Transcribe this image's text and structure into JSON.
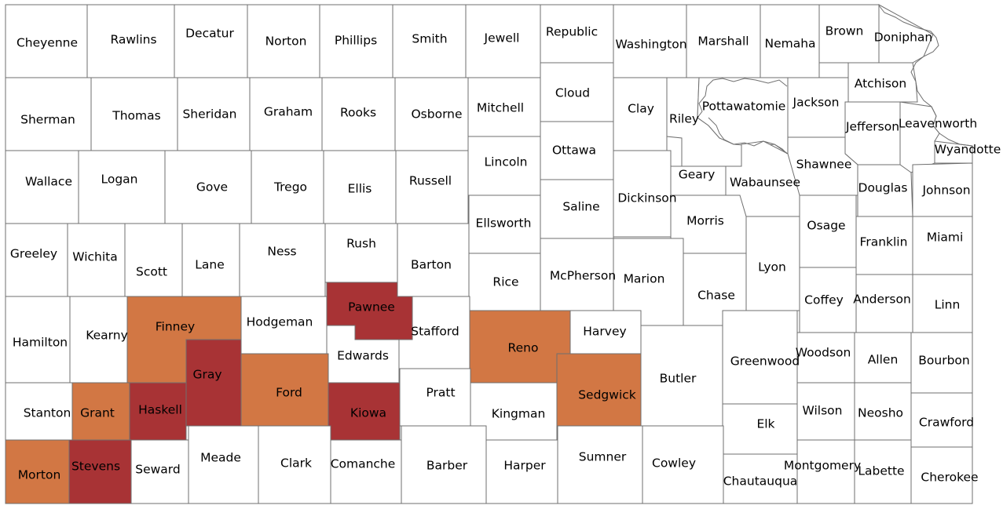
{
  "map": {
    "type": "choropleth",
    "region": "Kansas counties",
    "colors": {
      "none": "#ffffff",
      "orange": "#d27744",
      "red": "#a83335",
      "border": "#6f6f6f"
    },
    "counties": [
      {
        "name": "Cheyenne",
        "c": "none"
      },
      {
        "name": "Rawlins",
        "c": "none"
      },
      {
        "name": "Decatur",
        "c": "none"
      },
      {
        "name": "Norton",
        "c": "none"
      },
      {
        "name": "Phillips",
        "c": "none"
      },
      {
        "name": "Smith",
        "c": "none"
      },
      {
        "name": "Jewell",
        "c": "none"
      },
      {
        "name": "Republic",
        "c": "none"
      },
      {
        "name": "Washington",
        "c": "none"
      },
      {
        "name": "Marshall",
        "c": "none"
      },
      {
        "name": "Nemaha",
        "c": "none"
      },
      {
        "name": "Brown",
        "c": "none"
      },
      {
        "name": "Doniphan",
        "c": "none"
      },
      {
        "name": "Sherman",
        "c": "none"
      },
      {
        "name": "Thomas",
        "c": "none"
      },
      {
        "name": "Sheridan",
        "c": "none"
      },
      {
        "name": "Graham",
        "c": "none"
      },
      {
        "name": "Rooks",
        "c": "none"
      },
      {
        "name": "Osborne",
        "c": "none"
      },
      {
        "name": "Mitchell",
        "c": "none"
      },
      {
        "name": "Cloud",
        "c": "none"
      },
      {
        "name": "Clay",
        "c": "none"
      },
      {
        "name": "Riley",
        "c": "none"
      },
      {
        "name": "Pottawatomie",
        "c": "none"
      },
      {
        "name": "Jackson",
        "c": "none"
      },
      {
        "name": "Atchison",
        "c": "none"
      },
      {
        "name": "Jefferson",
        "c": "none"
      },
      {
        "name": "Leavenworth",
        "c": "none"
      },
      {
        "name": "Wyandotte",
        "c": "none"
      },
      {
        "name": "Wallace",
        "c": "none"
      },
      {
        "name": "Logan",
        "c": "none"
      },
      {
        "name": "Gove",
        "c": "none"
      },
      {
        "name": "Trego",
        "c": "none"
      },
      {
        "name": "Ellis",
        "c": "none"
      },
      {
        "name": "Russell",
        "c": "none"
      },
      {
        "name": "Lincoln",
        "c": "none"
      },
      {
        "name": "Ottawa",
        "c": "none"
      },
      {
        "name": "Dickinson",
        "c": "none"
      },
      {
        "name": "Geary",
        "c": "none"
      },
      {
        "name": "Wabaunsee",
        "c": "none"
      },
      {
        "name": "Shawnee",
        "c": "none"
      },
      {
        "name": "Douglas",
        "c": "none"
      },
      {
        "name": "Johnson",
        "c": "none"
      },
      {
        "name": "Greeley",
        "c": "none"
      },
      {
        "name": "Wichita",
        "c": "none"
      },
      {
        "name": "Scott",
        "c": "none"
      },
      {
        "name": "Lane",
        "c": "none"
      },
      {
        "name": "Ness",
        "c": "none"
      },
      {
        "name": "Rush",
        "c": "none"
      },
      {
        "name": "Barton",
        "c": "none"
      },
      {
        "name": "Ellsworth",
        "c": "none"
      },
      {
        "name": "Saline",
        "c": "none"
      },
      {
        "name": "Morris",
        "c": "none"
      },
      {
        "name": "Osage",
        "c": "none"
      },
      {
        "name": "Franklin",
        "c": "none"
      },
      {
        "name": "Miami",
        "c": "none"
      },
      {
        "name": "Rice",
        "c": "none"
      },
      {
        "name": "McPherson",
        "c": "none"
      },
      {
        "name": "Marion",
        "c": "none"
      },
      {
        "name": "Chase",
        "c": "none"
      },
      {
        "name": "Lyon",
        "c": "none"
      },
      {
        "name": "Coffey",
        "c": "none"
      },
      {
        "name": "Anderson",
        "c": "none"
      },
      {
        "name": "Linn",
        "c": "none"
      },
      {
        "name": "Hamilton",
        "c": "none"
      },
      {
        "name": "Kearny",
        "c": "none"
      },
      {
        "name": "Finney",
        "c": "orange"
      },
      {
        "name": "Hodgeman",
        "c": "none"
      },
      {
        "name": "Pawnee",
        "c": "red"
      },
      {
        "name": "Stafford",
        "c": "none"
      },
      {
        "name": "Reno",
        "c": "orange"
      },
      {
        "name": "Harvey",
        "c": "none"
      },
      {
        "name": "Edwards",
        "c": "none"
      },
      {
        "name": "Stanton",
        "c": "none"
      },
      {
        "name": "Grant",
        "c": "orange"
      },
      {
        "name": "Haskell",
        "c": "red"
      },
      {
        "name": "Gray",
        "c": "red"
      },
      {
        "name": "Ford",
        "c": "orange"
      },
      {
        "name": "Kiowa",
        "c": "red"
      },
      {
        "name": "Pratt",
        "c": "none"
      },
      {
        "name": "Kingman",
        "c": "none"
      },
      {
        "name": "Sedgwick",
        "c": "orange"
      },
      {
        "name": "Butler",
        "c": "none"
      },
      {
        "name": "Greenwood",
        "c": "none"
      },
      {
        "name": "Woodson",
        "c": "none"
      },
      {
        "name": "Allen",
        "c": "none"
      },
      {
        "name": "Bourbon",
        "c": "none"
      },
      {
        "name": "Wilson",
        "c": "none"
      },
      {
        "name": "Neosho",
        "c": "none"
      },
      {
        "name": "Elk",
        "c": "none"
      },
      {
        "name": "Crawford",
        "c": "none"
      },
      {
        "name": "Morton",
        "c": "orange"
      },
      {
        "name": "Stevens",
        "c": "red"
      },
      {
        "name": "Seward",
        "c": "none"
      },
      {
        "name": "Meade",
        "c": "none"
      },
      {
        "name": "Clark",
        "c": "none"
      },
      {
        "name": "Comanche",
        "c": "none"
      },
      {
        "name": "Barber",
        "c": "none"
      },
      {
        "name": "Harper",
        "c": "none"
      },
      {
        "name": "Sumner",
        "c": "none"
      },
      {
        "name": "Cowley",
        "c": "none"
      },
      {
        "name": "Chautauqua",
        "c": "none"
      },
      {
        "name": "Montgomery",
        "c": "none"
      },
      {
        "name": "Labette",
        "c": "none"
      },
      {
        "name": "Cherokee",
        "c": "none"
      }
    ]
  }
}
